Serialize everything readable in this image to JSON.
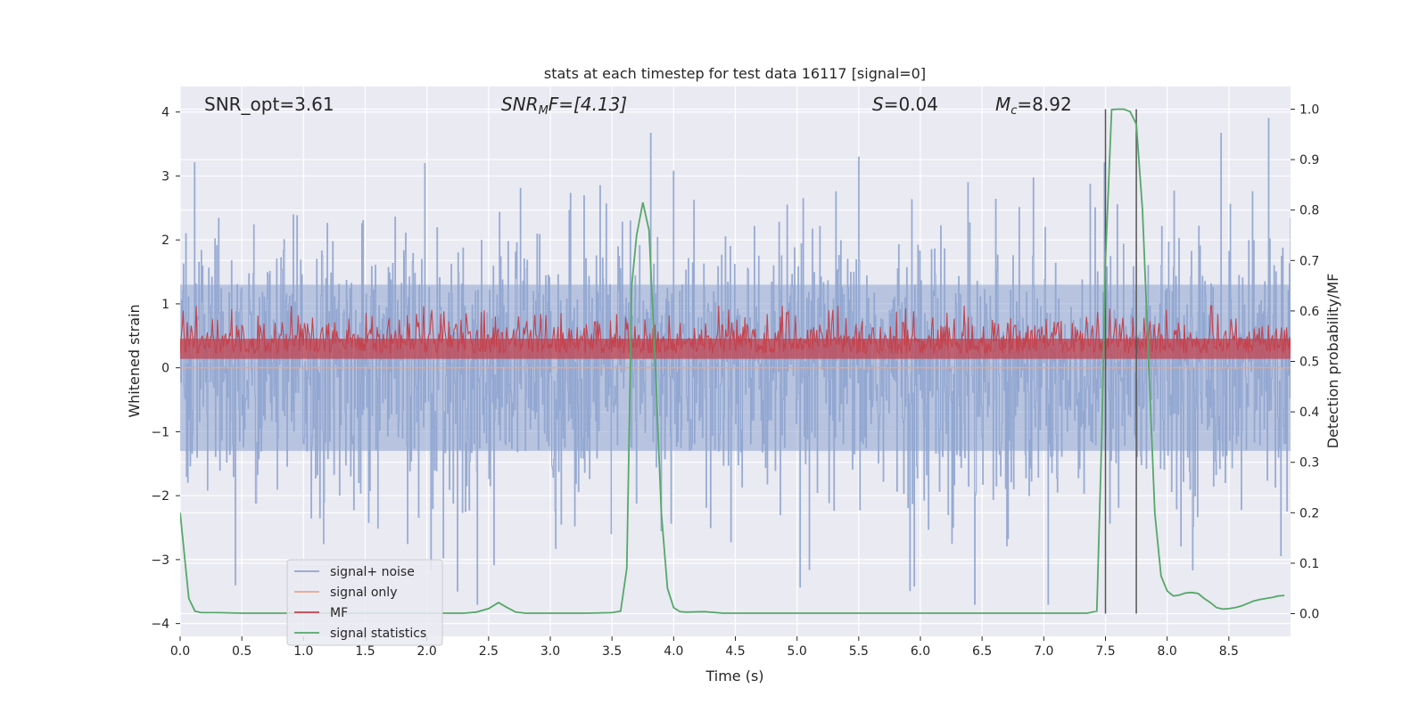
{
  "chart_data": {
    "type": "line",
    "title": "stats at each timestep for test data 16117 [signal=0]",
    "xlabel": "Time (s)",
    "ylabel_left": "Whitened strain",
    "ylabel_right": "Detection probability/MF",
    "xlim": [
      0.0,
      9.0
    ],
    "ylim_left": [
      -4.2,
      4.4
    ],
    "ylim_right": [
      -0.045,
      1.045
    ],
    "xticks": [
      "0.0",
      "0.5",
      "1.0",
      "1.5",
      "2.0",
      "2.5",
      "3.0",
      "3.5",
      "4.0",
      "4.5",
      "5.0",
      "5.5",
      "6.0",
      "6.5",
      "7.0",
      "7.5",
      "8.0",
      "8.5"
    ],
    "yticks_left": [
      "4",
      "3",
      "2",
      "1",
      "0",
      "−1",
      "−2",
      "−3",
      "−4"
    ],
    "yticks_right": [
      "1.0",
      "0.9",
      "0.8",
      "0.7",
      "0.6",
      "0.5",
      "0.4",
      "0.3",
      "0.2",
      "0.1",
      "0.0"
    ],
    "grid": true,
    "legend_position": "lower-left",
    "annotations": {
      "snr_opt": "SNR_opt=3.61",
      "snr_mf_base": "SNR",
      "snr_mf_sub": "M",
      "snr_mf_rest": "F=[4.13]",
      "s_base": "S",
      "s_rest": "=0.04",
      "mc_base": "M",
      "mc_sub": "c",
      "mc_rest": "=8.92"
    },
    "vlines_x": [
      7.5,
      7.75
    ],
    "series": [
      {
        "name": "signal+ noise",
        "color": "#8ea4cf",
        "style": "dense noise, amplitude about ±2.5, peaks to about ±3.8"
      },
      {
        "name": "signal only",
        "color": "#e8a68c",
        "values_constant": 0.0
      },
      {
        "name": "MF",
        "color": "#c4424c",
        "axis": "right",
        "style": "noise band between about 0.5 and 0.63"
      },
      {
        "name": "signal statistics",
        "color": "#55a868",
        "axis": "right",
        "x": [
          0.0,
          0.07,
          0.12,
          0.17,
          0.3,
          0.5,
          1.0,
          1.5,
          2.0,
          2.3,
          2.4,
          2.5,
          2.58,
          2.65,
          2.72,
          2.8,
          3.0,
          3.3,
          3.5,
          3.57,
          3.62,
          3.66,
          3.7,
          3.75,
          3.8,
          3.85,
          3.9,
          3.95,
          4.0,
          4.05,
          4.1,
          4.25,
          4.4,
          5.0,
          6.0,
          7.0,
          7.35,
          7.43,
          7.47,
          7.5,
          7.55,
          7.6,
          7.65,
          7.7,
          7.75,
          7.8,
          7.85,
          7.9,
          7.95,
          8.0,
          8.05,
          8.1,
          8.15,
          8.2,
          8.25,
          8.3,
          8.35,
          8.4,
          8.45,
          8.5,
          8.55,
          8.6,
          8.65,
          8.7,
          8.75,
          8.8,
          8.85,
          8.9,
          8.95
        ],
        "values": [
          0.2,
          0.03,
          0.005,
          0.002,
          0.002,
          0.001,
          0.001,
          0.001,
          0.001,
          0.001,
          0.003,
          0.01,
          0.022,
          0.012,
          0.003,
          0.001,
          0.001,
          0.001,
          0.002,
          0.005,
          0.09,
          0.65,
          0.75,
          0.815,
          0.76,
          0.5,
          0.2,
          0.05,
          0.012,
          0.004,
          0.003,
          0.004,
          0.001,
          0.001,
          0.001,
          0.001,
          0.001,
          0.005,
          0.35,
          0.7,
          0.999,
          1.0,
          1.0,
          0.995,
          0.97,
          0.8,
          0.5,
          0.2,
          0.075,
          0.045,
          0.035,
          0.037,
          0.041,
          0.042,
          0.04,
          0.03,
          0.022,
          0.012,
          0.009,
          0.01,
          0.012,
          0.015,
          0.02,
          0.025,
          0.028,
          0.03,
          0.032,
          0.035,
          0.036
        ]
      }
    ]
  }
}
